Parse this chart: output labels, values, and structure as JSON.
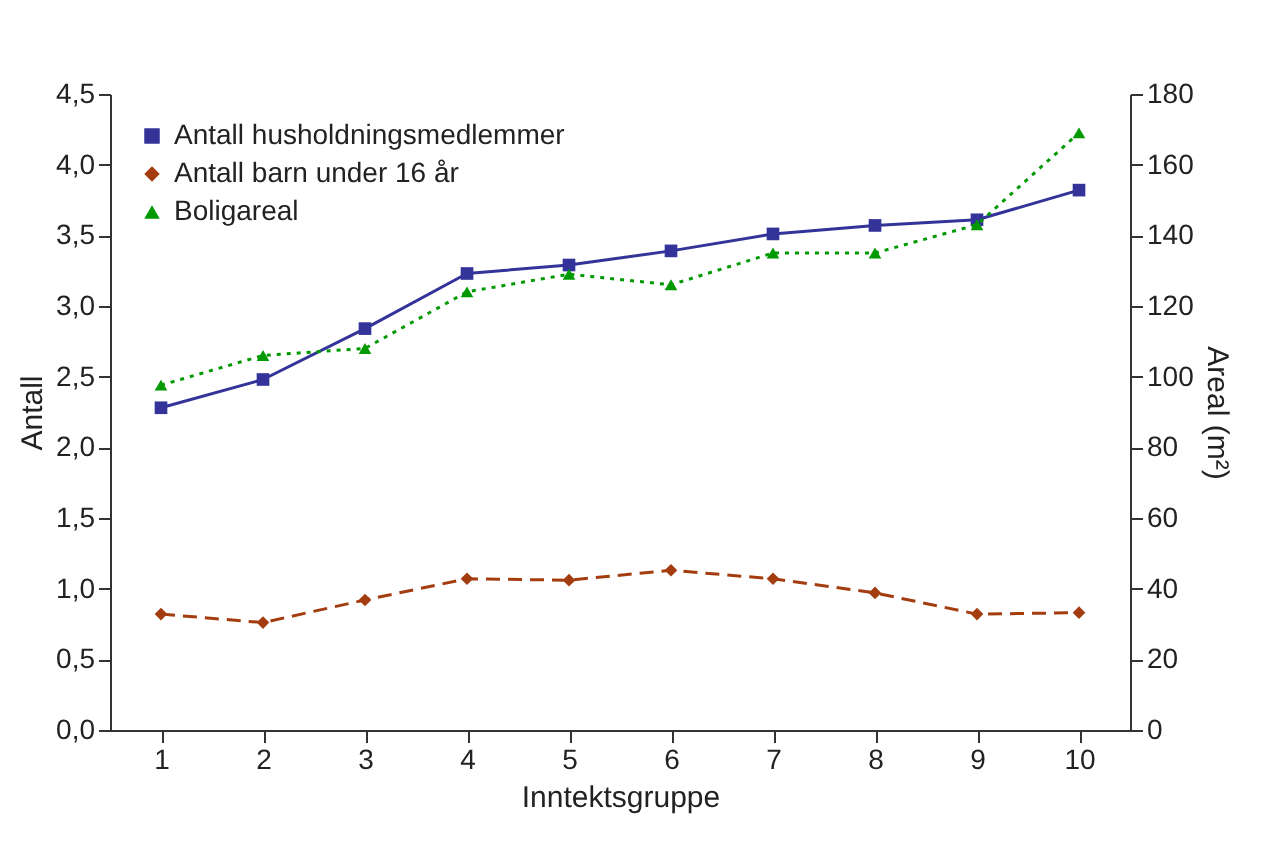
{
  "chart_data": {
    "type": "line",
    "xlabel": "Inntektsgruppe",
    "ylabel": "Antall",
    "y2label": "Areal (m²)",
    "categories": [
      "1",
      "2",
      "3",
      "4",
      "5",
      "6",
      "7",
      "8",
      "9",
      "10"
    ],
    "series": [
      {
        "name": "Antall husholdningsmedlemmer",
        "color": "#333399",
        "marker": "square",
        "line_style": "solid",
        "values": [
          2.28,
          2.48,
          2.84,
          3.23,
          3.29,
          3.39,
          3.51,
          3.57,
          3.61,
          3.82
        ]
      },
      {
        "name": "Antall barn under 16 år",
        "color": "#a33d0f",
        "marker": "diamond",
        "line_style": "dashed",
        "values": [
          0.82,
          0.76,
          0.92,
          1.07,
          1.06,
          1.13,
          1.07,
          0.97,
          0.82,
          0.83
        ]
      },
      {
        "name": "Boligareal",
        "color": "#009900",
        "marker": "triangle",
        "line_style": "dotted",
        "axis": "y2",
        "values": [
          97.6,
          106,
          108,
          124,
          129,
          126,
          135,
          135,
          143,
          169
        ]
      }
    ],
    "ylim": [
      0,
      4.5
    ],
    "yticks": [
      {
        "value": 0,
        "label": "0,0"
      },
      {
        "value": 0.5,
        "label": "0,5"
      },
      {
        "value": 1,
        "label": "1,0"
      },
      {
        "value": 1.5,
        "label": "1,5"
      },
      {
        "value": 2,
        "label": "2,0"
      },
      {
        "value": 2.5,
        "label": "2,5"
      },
      {
        "value": 3,
        "label": "3,0"
      },
      {
        "value": 3.5,
        "label": "3,5"
      },
      {
        "value": 4,
        "label": "4,0"
      },
      {
        "value": 4.5,
        "label": "4,5"
      }
    ],
    "y2lim": [
      0,
      180
    ],
    "y2ticks": [
      0,
      20,
      40,
      60,
      80,
      100,
      120,
      140,
      160,
      180
    ],
    "grid": false,
    "legend": "top left"
  }
}
